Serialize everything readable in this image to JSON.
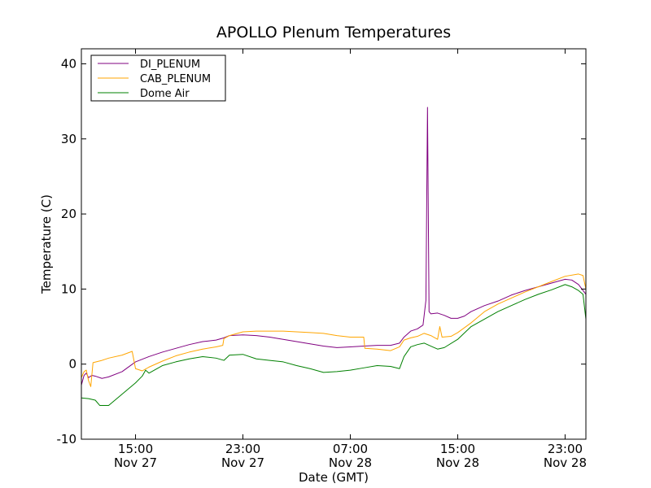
{
  "chart_data": {
    "type": "line",
    "title": "APOLLO Plenum Temperatures",
    "xlabel": "Date (GMT)",
    "ylabel": "Temperature (C)",
    "ylim": [
      -10,
      42
    ],
    "xlim": [
      "2011-11-27 10:58",
      "2011-11-29 00:33"
    ],
    "grid": false,
    "legend_position": "top-left",
    "y_ticks": [
      {
        "value": -10,
        "label": "-10"
      },
      {
        "value": 0,
        "label": "0"
      },
      {
        "value": 10,
        "label": "10"
      },
      {
        "value": 20,
        "label": "20"
      },
      {
        "value": 30,
        "label": "30"
      },
      {
        "value": 40,
        "label": "40"
      }
    ],
    "x_ticks": [
      {
        "value": "2011-11-27 15:00",
        "time": "15:00",
        "day": "Nov 27"
      },
      {
        "value": "2011-11-27 23:00",
        "time": "23:00",
        "day": "Nov 27"
      },
      {
        "value": "2011-11-28 07:00",
        "time": "07:00",
        "day": "Nov 28"
      },
      {
        "value": "2011-11-28 15:00",
        "time": "15:00",
        "day": "Nov 28"
      },
      {
        "value": "2011-11-28 23:00",
        "time": "23:00",
        "day": "Nov 28"
      }
    ],
    "series": [
      {
        "name": "DI_PLENUM",
        "color": "#800080",
        "points": [
          [
            "2011-11-27 10:58",
            -2.8
          ],
          [
            "2011-11-27 11:10",
            -1.5
          ],
          [
            "2011-11-27 11:20",
            -1.2
          ],
          [
            "2011-11-27 11:30",
            -1.8
          ],
          [
            "2011-11-27 11:45",
            -1.5
          ],
          [
            "2011-11-27 12:00",
            -1.6
          ],
          [
            "2011-11-27 12:30",
            -1.9
          ],
          [
            "2011-11-27 13:00",
            -1.7
          ],
          [
            "2011-11-27 14:00",
            -1.0
          ],
          [
            "2011-11-27 15:00",
            0.3
          ],
          [
            "2011-11-27 16:00",
            1.0
          ],
          [
            "2011-11-27 17:00",
            1.6
          ],
          [
            "2011-11-27 18:00",
            2.1
          ],
          [
            "2011-11-27 19:00",
            2.6
          ],
          [
            "2011-11-27 20:00",
            3.0
          ],
          [
            "2011-11-27 21:00",
            3.2
          ],
          [
            "2011-11-27 21:35",
            3.5
          ],
          [
            "2011-11-27 22:00",
            3.8
          ],
          [
            "2011-11-27 23:00",
            3.9
          ],
          [
            "2011-11-28 00:00",
            3.8
          ],
          [
            "2011-11-28 01:00",
            3.6
          ],
          [
            "2011-11-28 02:00",
            3.3
          ],
          [
            "2011-11-28 03:00",
            3.0
          ],
          [
            "2011-11-28 04:00",
            2.7
          ],
          [
            "2011-11-28 05:00",
            2.4
          ],
          [
            "2011-11-28 06:00",
            2.2
          ],
          [
            "2011-11-28 07:00",
            2.3
          ],
          [
            "2011-11-28 08:00",
            2.4
          ],
          [
            "2011-11-28 09:00",
            2.5
          ],
          [
            "2011-11-28 10:00",
            2.5
          ],
          [
            "2011-11-28 10:40",
            2.8
          ],
          [
            "2011-11-28 11:00",
            3.6
          ],
          [
            "2011-11-28 11:30",
            4.4
          ],
          [
            "2011-11-28 12:00",
            4.7
          ],
          [
            "2011-11-28 12:25",
            5.2
          ],
          [
            "2011-11-28 12:38",
            8.5
          ],
          [
            "2011-11-28 12:45",
            34.2
          ],
          [
            "2011-11-28 12:52",
            7.0
          ],
          [
            "2011-11-28 13:00",
            6.7
          ],
          [
            "2011-11-28 13:30",
            6.8
          ],
          [
            "2011-11-28 14:00",
            6.5
          ],
          [
            "2011-11-28 14:30",
            6.1
          ],
          [
            "2011-11-28 15:00",
            6.1
          ],
          [
            "2011-11-28 15:30",
            6.4
          ],
          [
            "2011-11-28 16:00",
            7.0
          ],
          [
            "2011-11-28 17:00",
            7.8
          ],
          [
            "2011-11-28 18:00",
            8.4
          ],
          [
            "2011-11-28 19:00",
            9.2
          ],
          [
            "2011-11-28 20:00",
            9.8
          ],
          [
            "2011-11-28 21:00",
            10.3
          ],
          [
            "2011-11-28 22:00",
            10.8
          ],
          [
            "2011-11-28 23:00",
            11.3
          ],
          [
            "2011-11-28 23:30",
            11.2
          ],
          [
            "2011-11-29 00:00",
            10.6
          ],
          [
            "2011-11-29 00:33",
            9.3
          ]
        ]
      },
      {
        "name": "CAB_PLENUM",
        "color": "#ffa500",
        "points": [
          [
            "2011-11-27 10:58",
            -1.8
          ],
          [
            "2011-11-27 11:10",
            -1.0
          ],
          [
            "2011-11-27 11:20",
            -0.8
          ],
          [
            "2011-11-27 11:30",
            -2.2
          ],
          [
            "2011-11-27 11:40",
            -3.0
          ],
          [
            "2011-11-27 11:50",
            0.2
          ],
          [
            "2011-11-27 12:30",
            0.5
          ],
          [
            "2011-11-27 13:00",
            0.8
          ],
          [
            "2011-11-27 14:00",
            1.2
          ],
          [
            "2011-11-27 14:45",
            1.7
          ],
          [
            "2011-11-27 15:00",
            -0.6
          ],
          [
            "2011-11-27 15:30",
            -0.9
          ],
          [
            "2011-11-27 16:00",
            -0.4
          ],
          [
            "2011-11-27 17:00",
            0.4
          ],
          [
            "2011-11-27 18:00",
            1.1
          ],
          [
            "2011-11-27 19:00",
            1.6
          ],
          [
            "2011-11-27 20:00",
            2.0
          ],
          [
            "2011-11-27 21:00",
            2.3
          ],
          [
            "2011-11-27 21:30",
            2.5
          ],
          [
            "2011-11-27 21:35",
            3.4
          ],
          [
            "2011-11-27 22:00",
            3.8
          ],
          [
            "2011-11-27 23:00",
            4.3
          ],
          [
            "2011-11-28 00:00",
            4.4
          ],
          [
            "2011-11-28 01:00",
            4.4
          ],
          [
            "2011-11-28 02:00",
            4.4
          ],
          [
            "2011-11-28 03:00",
            4.3
          ],
          [
            "2011-11-28 04:00",
            4.2
          ],
          [
            "2011-11-28 05:00",
            4.1
          ],
          [
            "2011-11-28 06:00",
            3.8
          ],
          [
            "2011-11-28 07:00",
            3.6
          ],
          [
            "2011-11-28 08:00",
            3.6
          ],
          [
            "2011-11-28 08:05",
            2.1
          ],
          [
            "2011-11-28 09:00",
            2.0
          ],
          [
            "2011-11-28 10:00",
            1.8
          ],
          [
            "2011-11-28 10:40",
            2.3
          ],
          [
            "2011-11-28 11:00",
            3.2
          ],
          [
            "2011-11-28 11:30",
            3.5
          ],
          [
            "2011-11-28 12:00",
            3.7
          ],
          [
            "2011-11-28 12:30",
            4.1
          ],
          [
            "2011-11-28 13:00",
            3.8
          ],
          [
            "2011-11-28 13:30",
            3.3
          ],
          [
            "2011-11-28 13:40",
            5.0
          ],
          [
            "2011-11-28 13:50",
            3.6
          ],
          [
            "2011-11-28 14:30",
            3.7
          ],
          [
            "2011-11-28 15:00",
            4.2
          ],
          [
            "2011-11-28 16:00",
            5.5
          ],
          [
            "2011-11-28 17:00",
            7.0
          ],
          [
            "2011-11-28 18:00",
            8.0
          ],
          [
            "2011-11-28 19:00",
            8.8
          ],
          [
            "2011-11-28 20:00",
            9.6
          ],
          [
            "2011-11-28 21:00",
            10.3
          ],
          [
            "2011-11-28 22:00",
            11.0
          ],
          [
            "2011-11-28 23:00",
            11.7
          ],
          [
            "2011-11-29 00:00",
            12.0
          ],
          [
            "2011-11-29 00:20",
            11.8
          ],
          [
            "2011-11-29 00:33",
            10.0
          ]
        ]
      },
      {
        "name": "Dome Air",
        "color": "#008000",
        "points": [
          [
            "2011-11-27 10:58",
            -4.5
          ],
          [
            "2011-11-27 11:30",
            -4.6
          ],
          [
            "2011-11-27 12:00",
            -4.8
          ],
          [
            "2011-11-27 12:20",
            -5.5
          ],
          [
            "2011-11-27 13:00",
            -5.5
          ],
          [
            "2011-11-27 14:00",
            -4.0
          ],
          [
            "2011-11-27 15:00",
            -2.5
          ],
          [
            "2011-11-27 15:30",
            -1.6
          ],
          [
            "2011-11-27 15:45",
            -0.8
          ],
          [
            "2011-11-27 16:00",
            -1.2
          ],
          [
            "2011-11-27 17:00",
            -0.2
          ],
          [
            "2011-11-27 18:00",
            0.3
          ],
          [
            "2011-11-27 19:00",
            0.7
          ],
          [
            "2011-11-27 20:00",
            1.0
          ],
          [
            "2011-11-27 21:00",
            0.8
          ],
          [
            "2011-11-27 21:35",
            0.5
          ],
          [
            "2011-11-27 22:00",
            1.2
          ],
          [
            "2011-11-27 23:00",
            1.3
          ],
          [
            "2011-11-28 00:00",
            0.7
          ],
          [
            "2011-11-28 01:00",
            0.5
          ],
          [
            "2011-11-28 02:00",
            0.3
          ],
          [
            "2011-11-28 03:00",
            -0.2
          ],
          [
            "2011-11-28 04:00",
            -0.6
          ],
          [
            "2011-11-28 05:00",
            -1.1
          ],
          [
            "2011-11-28 06:00",
            -1.0
          ],
          [
            "2011-11-28 07:00",
            -0.8
          ],
          [
            "2011-11-28 08:00",
            -0.5
          ],
          [
            "2011-11-28 09:00",
            -0.2
          ],
          [
            "2011-11-28 10:00",
            -0.3
          ],
          [
            "2011-11-28 10:40",
            -0.6
          ],
          [
            "2011-11-28 11:00",
            1.0
          ],
          [
            "2011-11-28 11:30",
            2.3
          ],
          [
            "2011-11-28 12:00",
            2.6
          ],
          [
            "2011-11-28 12:30",
            2.8
          ],
          [
            "2011-11-28 13:00",
            2.4
          ],
          [
            "2011-11-28 13:30",
            2.0
          ],
          [
            "2011-11-28 14:00",
            2.2
          ],
          [
            "2011-11-28 15:00",
            3.3
          ],
          [
            "2011-11-28 16:00",
            5.0
          ],
          [
            "2011-11-28 17:00",
            6.0
          ],
          [
            "2011-11-28 18:00",
            7.0
          ],
          [
            "2011-11-28 19:00",
            7.8
          ],
          [
            "2011-11-28 20:00",
            8.6
          ],
          [
            "2011-11-28 21:00",
            9.3
          ],
          [
            "2011-11-28 22:00",
            9.9
          ],
          [
            "2011-11-28 23:00",
            10.6
          ],
          [
            "2011-11-28 23:30",
            10.3
          ],
          [
            "2011-11-29 00:00",
            9.8
          ],
          [
            "2011-11-29 00:20",
            9.3
          ],
          [
            "2011-11-29 00:33",
            6.0
          ]
        ]
      }
    ]
  }
}
